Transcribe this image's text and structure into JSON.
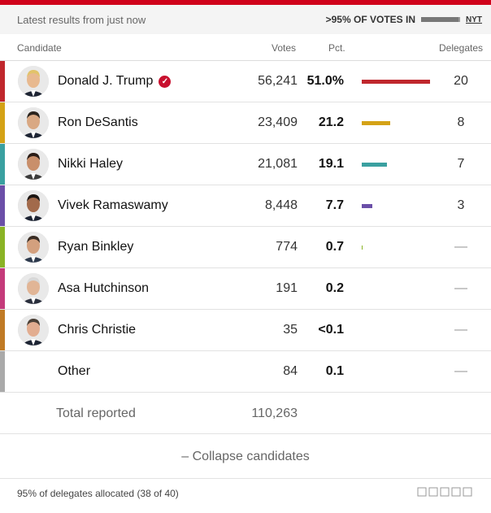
{
  "status": {
    "left_text": "Latest results from just now",
    "votes_in_text": ">95% OF VOTES IN",
    "votes_in_fraction": 0.95,
    "source": "NYT"
  },
  "columns": {
    "candidate": "Candidate",
    "votes": "Votes",
    "pct": "Pct.",
    "delegates": "Delegates"
  },
  "candidates": [
    {
      "name": "Donald J. Trump",
      "winner": true,
      "votes": "56,241",
      "pct": "51.0%",
      "pct_value": 51.0,
      "delegates": "20",
      "color": "#c0272d"
    },
    {
      "name": "Ron DeSantis",
      "winner": false,
      "votes": "23,409",
      "pct": "21.2",
      "pct_value": 21.2,
      "delegates": "8",
      "color": "#d4a216"
    },
    {
      "name": "Nikki Haley",
      "winner": false,
      "votes": "21,081",
      "pct": "19.1",
      "pct_value": 19.1,
      "delegates": "7",
      "color": "#3aa0a0"
    },
    {
      "name": "Vivek Ramaswamy",
      "winner": false,
      "votes": "8,448",
      "pct": "7.7",
      "pct_value": 7.7,
      "delegates": "3",
      "color": "#6b4fa8"
    },
    {
      "name": "Ryan Binkley",
      "winner": false,
      "votes": "774",
      "pct": "0.7",
      "pct_value": 0.7,
      "delegates": "—",
      "color": "#8ab325"
    },
    {
      "name": "Asa Hutchinson",
      "winner": false,
      "votes": "191",
      "pct": "0.2",
      "pct_value": 0.2,
      "delegates": "—",
      "color": "#c43b7a"
    },
    {
      "name": "Chris Christie",
      "winner": false,
      "votes": "35",
      "pct": "<0.1",
      "pct_value": 0.05,
      "delegates": "—",
      "color": "#c07a25"
    },
    {
      "name": "Other",
      "winner": false,
      "votes": "84",
      "pct": "0.1",
      "pct_value": 0.1,
      "delegates": "—",
      "color": "#aaaaaa"
    }
  ],
  "total": {
    "label": "Total reported",
    "votes": "110,263"
  },
  "collapse_label": "– Collapse candidates",
  "footer": "95% of delegates allocated (38 of 40)"
}
